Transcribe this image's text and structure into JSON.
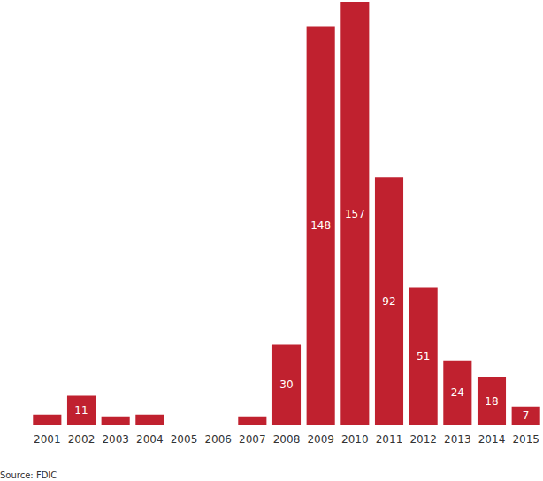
{
  "chart_data": {
    "type": "bar",
    "source": "Source: FDIC",
    "categories": [
      "2001",
      "2002",
      "2003",
      "2004",
      "2005",
      "2006",
      "2007",
      "2008",
      "2009",
      "2010",
      "2011",
      "2012",
      "2013",
      "2014",
      "2015"
    ],
    "values": [
      4,
      11,
      3,
      4,
      0,
      0,
      3,
      30,
      148,
      157,
      92,
      51,
      24,
      18,
      7
    ],
    "value_labels": [
      null,
      "11",
      null,
      null,
      null,
      null,
      null,
      "30",
      "148",
      "157",
      "92",
      "51",
      "24",
      "18",
      "7"
    ],
    "color": "#c0212f",
    "ylim": [
      0,
      157
    ],
    "grid": false,
    "data_labels": true,
    "tick_labels": "x"
  }
}
